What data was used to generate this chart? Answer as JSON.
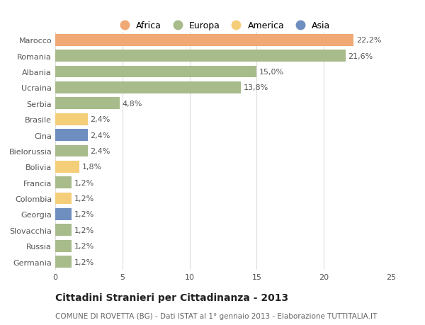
{
  "countries": [
    "Germania",
    "Russia",
    "Slovacchia",
    "Georgia",
    "Colombia",
    "Francia",
    "Bolivia",
    "Bielorussia",
    "Cina",
    "Brasile",
    "Serbia",
    "Ucraina",
    "Albania",
    "Romania",
    "Marocco"
  ],
  "values": [
    1.2,
    1.2,
    1.2,
    1.2,
    1.2,
    1.2,
    1.8,
    2.4,
    2.4,
    2.4,
    4.8,
    13.8,
    15.0,
    21.6,
    22.2
  ],
  "labels": [
    "1,2%",
    "1,2%",
    "1,2%",
    "1,2%",
    "1,2%",
    "1,2%",
    "1,8%",
    "2,4%",
    "2,4%",
    "2,4%",
    "4,8%",
    "13,8%",
    "15,0%",
    "21,6%",
    "22,2%"
  ],
  "continents": [
    "Europa",
    "Europa",
    "Europa",
    "Asia",
    "America",
    "Europa",
    "America",
    "Europa",
    "Asia",
    "America",
    "Europa",
    "Europa",
    "Europa",
    "Europa",
    "Africa"
  ],
  "colors": {
    "Africa": "#F0A875",
    "Europa": "#A8BB8A",
    "America": "#F5CE7A",
    "Asia": "#6E8EC0"
  },
  "legend_order": [
    "Africa",
    "Europa",
    "America",
    "Asia"
  ],
  "legend_colors": [
    "#F0A875",
    "#A8BB8A",
    "#F5CE7A",
    "#6E8EC0"
  ],
  "title": "Cittadini Stranieri per Cittadinanza - 2013",
  "subtitle": "COMUNE DI ROVETTA (BG) - Dati ISTAT al 1° gennaio 2013 - Elaborazione TUTTITALIA.IT",
  "xlim": [
    0,
    25
  ],
  "xticks": [
    0,
    5,
    10,
    15,
    20,
    25
  ],
  "bar_height": 0.75,
  "background_color": "#FFFFFF",
  "grid_color": "#DDDDDD",
  "label_fontsize": 8,
  "tick_fontsize": 8,
  "ytick_fontsize": 8,
  "title_fontsize": 10,
  "subtitle_fontsize": 7.5
}
